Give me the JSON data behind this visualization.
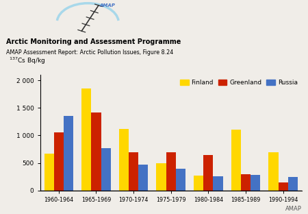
{
  "periods": [
    "1960-1964",
    "1965-1969",
    "1970-1974",
    "1975-1979",
    "1980-1984",
    "1985-1989",
    "1990-1994"
  ],
  "finland": [
    670,
    1850,
    1120,
    490,
    270,
    1100,
    700
  ],
  "greenland": [
    1060,
    1420,
    700,
    700,
    650,
    290,
    140
  ],
  "russia": [
    1360,
    770,
    470,
    390,
    260,
    280,
    240
  ],
  "finland_color": "#FFD700",
  "greenland_color": "#CC2200",
  "russia_color": "#4472C4",
  "ylim": [
    0,
    2100
  ],
  "yticks": [
    0,
    500,
    1000,
    1500,
    2000
  ],
  "ytick_labels": [
    "0",
    "500",
    "1 000",
    "1 500",
    "2 000"
  ],
  "header_bold": "Arctic Monitoring and Assessment Programme",
  "header_sub": "AMAP Assessment Report: Arctic Pollution Issues, Figure 8.24",
  "legend_labels": [
    "Finland",
    "Greenland",
    "Russia"
  ],
  "bar_width": 0.26,
  "background_color": "#f0ede8",
  "footer": "AMAP",
  "ylabel_superscript": "137",
  "ylabel_main": "Cs Bq/kg"
}
